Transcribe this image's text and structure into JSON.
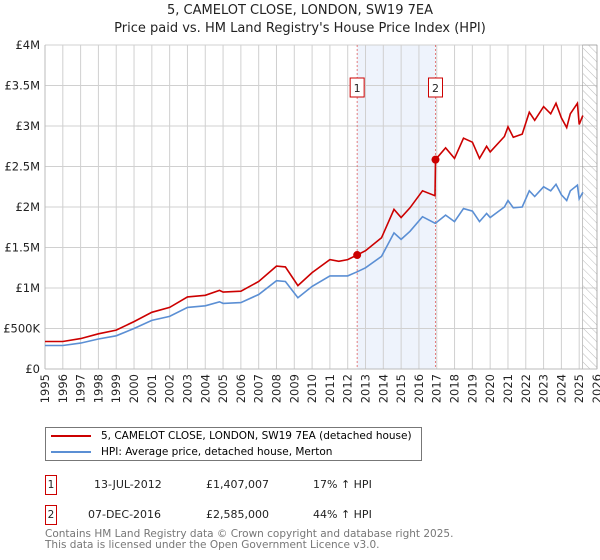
{
  "chart_data": {
    "type": "line",
    "title": "5, CAMELOT CLOSE, LONDON, SW19 7EA",
    "subtitle": "Price paid vs. HM Land Registry's House Price Index (HPI)",
    "xlim": [
      1995,
      2026
    ],
    "ylim": [
      0,
      4000000
    ],
    "x_ticks": [
      "1995",
      "1996",
      "1997",
      "1998",
      "1999",
      "2000",
      "2001",
      "2002",
      "2003",
      "2004",
      "2005",
      "2006",
      "2007",
      "2008",
      "2009",
      "2010",
      "2011",
      "2012",
      "2013",
      "2014",
      "2015",
      "2016",
      "2017",
      "2018",
      "2019",
      "2020",
      "2021",
      "2022",
      "2023",
      "2024",
      "2025",
      "2026"
    ],
    "y_ticks": [
      {
        "value": 0,
        "label": "£0"
      },
      {
        "value": 500000,
        "label": "£500K"
      },
      {
        "value": 1000000,
        "label": "£1M"
      },
      {
        "value": 1500000,
        "label": "£1.5M"
      },
      {
        "value": 2000000,
        "label": "£2M"
      },
      {
        "value": 2500000,
        "label": "£2.5M"
      },
      {
        "value": 3000000,
        "label": "£3M"
      },
      {
        "value": 3500000,
        "label": "£3.5M"
      },
      {
        "value": 4000000,
        "label": "£4M"
      }
    ],
    "grid": true,
    "shaded_period": [
      2012.53,
      2016.93
    ],
    "forecast_hatch_from": 2025.2,
    "series": [
      {
        "name": "5, CAMELOT CLOSE, LONDON, SW19 7EA (detached house)",
        "color": "#cc0000",
        "x": [
          1995,
          1996,
          1997,
          1998,
          1999,
          2000,
          2001,
          2002,
          2003,
          2004,
          2004.8,
          2005,
          2006,
          2007,
          2008,
          2008.5,
          2009.2,
          2010,
          2011,
          2011.5,
          2012,
          2012.53,
          2013,
          2013.9,
          2014.6,
          2015,
          2015.5,
          2016.2,
          2016.9,
          2016.93,
          2017.5,
          2018,
          2018.5,
          2019,
          2019.4,
          2019.8,
          2020,
          2020.8,
          2021,
          2021.3,
          2021.8,
          2022.2,
          2022.5,
          2023,
          2023.4,
          2023.7,
          2024,
          2024.3,
          2024.5,
          2024.9,
          2025.0,
          2025.2
        ],
        "y": [
          340000,
          340000,
          375000,
          435000,
          480000,
          585000,
          700000,
          760000,
          890000,
          910000,
          970000,
          950000,
          960000,
          1080000,
          1270000,
          1260000,
          1030000,
          1190000,
          1350000,
          1330000,
          1350000,
          1407007,
          1460000,
          1620000,
          1970000,
          1870000,
          1990000,
          2200000,
          2140000,
          2585000,
          2730000,
          2600000,
          2850000,
          2800000,
          2600000,
          2750000,
          2680000,
          2870000,
          2990000,
          2860000,
          2900000,
          3170000,
          3070000,
          3240000,
          3150000,
          3280000,
          3100000,
          2980000,
          3150000,
          3280000,
          3020000,
          3130000
        ]
      },
      {
        "name": "HPI: Average price, detached house, Merton",
        "color": "#5b8fd4",
        "x": [
          1995,
          1996,
          1997,
          1998,
          1999,
          2000,
          2001,
          2002,
          2003,
          2004,
          2004.8,
          2005,
          2006,
          2007,
          2008,
          2008.5,
          2009.2,
          2010,
          2011,
          2011.5,
          2012,
          2012.53,
          2013,
          2013.9,
          2014.6,
          2015,
          2015.5,
          2016.2,
          2016.9,
          2016.93,
          2017.5,
          2018,
          2018.5,
          2019,
          2019.4,
          2019.8,
          2020,
          2020.8,
          2021,
          2021.3,
          2021.8,
          2022.2,
          2022.5,
          2023,
          2023.4,
          2023.7,
          2024,
          2024.3,
          2024.5,
          2024.9,
          2025.0,
          2025.2
        ],
        "y": [
          290000,
          290000,
          320000,
          370000,
          410000,
          500000,
          600000,
          650000,
          760000,
          780000,
          830000,
          810000,
          820000,
          920000,
          1090000,
          1080000,
          880000,
          1020000,
          1150000,
          1150000,
          1150000,
          1200000,
          1250000,
          1390000,
          1680000,
          1600000,
          1700000,
          1880000,
          1800000,
          1800000,
          1900000,
          1820000,
          1980000,
          1950000,
          1820000,
          1920000,
          1870000,
          2000000,
          2080000,
          1990000,
          2000000,
          2200000,
          2130000,
          2250000,
          2200000,
          2280000,
          2150000,
          2080000,
          2200000,
          2270000,
          2100000,
          2180000
        ]
      }
    ],
    "sales": [
      {
        "marker": "1",
        "x": 2012.53,
        "y": 1407007,
        "date": "13-JUL-2012",
        "price": "£1,407,007",
        "hpi": "17% ↑ HPI"
      },
      {
        "marker": "2",
        "x": 2016.93,
        "y": 2585000,
        "date": "07-DEC-2016",
        "price": "£2,585,000",
        "hpi": "44% ↑ HPI"
      }
    ]
  },
  "footer": {
    "line1": "Contains HM Land Registry data © Crown copyright and database right 2025.",
    "line2": "This data is licensed under the Open Government Licence v3.0."
  }
}
